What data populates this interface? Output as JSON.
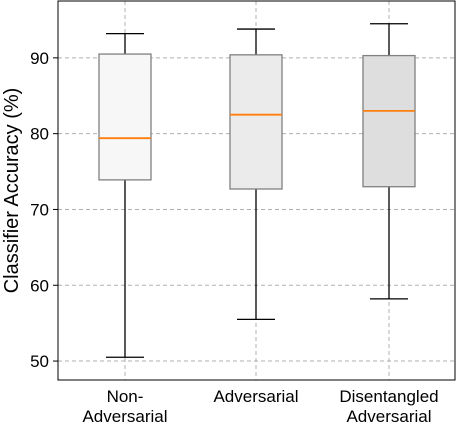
{
  "chart_data": {
    "type": "box",
    "title": "",
    "xlabel": "",
    "ylabel": "Classifier Accuracy (%)",
    "ylim": [
      47.5,
      97.5
    ],
    "yticks": [
      50,
      60,
      70,
      80,
      90
    ],
    "grid": true,
    "categories": [
      [
        "Non-",
        "Adversarial"
      ],
      [
        "Adversarial"
      ],
      [
        "Disentangled",
        "Adversarial"
      ]
    ],
    "boxes": [
      {
        "whisker_low": 50.5,
        "q1": 73.9,
        "median": 79.4,
        "q3": 90.5,
        "whisker_high": 93.2,
        "fill": "#f7f7f7"
      },
      {
        "whisker_low": 55.5,
        "q1": 72.7,
        "median": 82.5,
        "q3": 90.4,
        "whisker_high": 93.8,
        "fill": "#ebebeb"
      },
      {
        "whisker_low": 58.2,
        "q1": 73.0,
        "median": 83.0,
        "q3": 90.3,
        "whisker_high": 94.5,
        "fill": "#dedede"
      }
    ],
    "colors": {
      "median": "#ff7f0e",
      "box_edge": "#808080",
      "whisker": "#000000",
      "grid": "#b0b0b0"
    }
  }
}
